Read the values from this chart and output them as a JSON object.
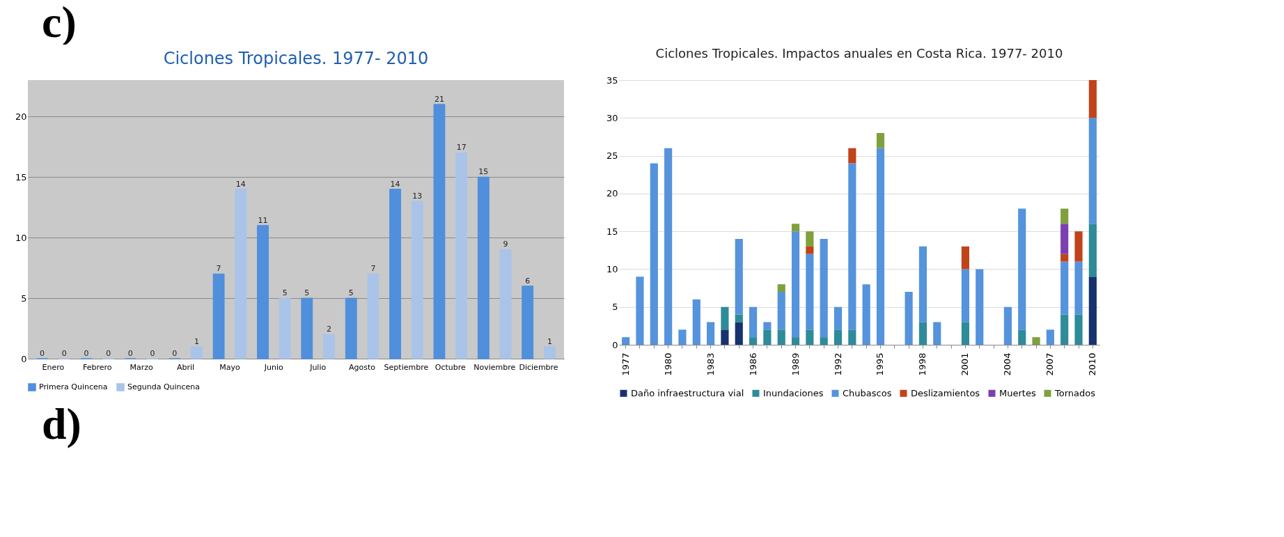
{
  "chart_data": [
    {
      "type": "bar",
      "title": "Ciclones Tropicales. 1977- 2010",
      "annotations": [
        "c)",
        "d)"
      ],
      "categories": [
        "Enero",
        "Febrero",
        "Marzo",
        "Abril",
        "Mayo",
        "Junio",
        "Julio",
        "Agosto",
        "Septiembre",
        "Octubre",
        "Noviembre",
        "Diciembre"
      ],
      "series": [
        {
          "name": "Primera Quincena",
          "color": "#4f8fdc",
          "values": [
            0,
            0,
            0,
            0,
            7,
            11,
            5,
            5,
            14,
            21,
            15,
            6
          ]
        },
        {
          "name": "Segunda Quincena",
          "color": "#a9c4e8",
          "values": [
            0,
            0,
            0,
            1,
            14,
            5,
            2,
            7,
            13,
            17,
            9,
            1
          ]
        }
      ],
      "ylim": [
        0,
        23
      ],
      "yticks": [
        0,
        5,
        10,
        15,
        20
      ],
      "grid": "y",
      "legend": "bottom",
      "data_labels": true
    },
    {
      "type": "bar",
      "title": "Ciclones Tropicales. Impactos anuales en Costa Rica. 1977- 2010",
      "stacked": true,
      "categories": [
        "1977",
        null,
        null,
        "1980",
        null,
        null,
        "1983",
        null,
        null,
        "1986",
        null,
        null,
        "1989",
        null,
        null,
        "1992",
        null,
        null,
        "1995",
        null,
        null,
        "1998",
        null,
        null,
        "2001",
        null,
        null,
        "2004",
        null,
        null,
        "2007",
        null,
        null,
        "2010"
      ],
      "series": [
        {
          "name": "Daño infraestructura vial",
          "color": "#17326e",
          "values": [
            null,
            null,
            null,
            null,
            null,
            null,
            null,
            2,
            3,
            null,
            null,
            null,
            null,
            null,
            null,
            null,
            null,
            null,
            null,
            null,
            null,
            null,
            null,
            null,
            null,
            null,
            null,
            null,
            null,
            null,
            null,
            null,
            null,
            9
          ]
        },
        {
          "name": "Inundaciones",
          "color": "#2e8b9a",
          "values": [
            null,
            null,
            null,
            null,
            null,
            null,
            null,
            3,
            1,
            1,
            2,
            2,
            1,
            2,
            1,
            2,
            2,
            null,
            null,
            null,
            null,
            3,
            null,
            null,
            3,
            null,
            null,
            null,
            2,
            null,
            null,
            4,
            4,
            7
          ]
        },
        {
          "name": "Chubascos",
          "color": "#5593dc",
          "values": [
            1,
            9,
            24,
            26,
            2,
            6,
            3,
            null,
            10,
            4,
            1,
            5,
            14,
            10,
            13,
            3,
            22,
            8,
            26,
            null,
            7,
            10,
            3,
            null,
            7,
            10,
            null,
            5,
            16,
            null,
            2,
            7,
            7,
            14
          ]
        },
        {
          "name": "Deslizamientos",
          "color": "#c0431a",
          "values": [
            null,
            null,
            null,
            null,
            null,
            null,
            null,
            null,
            null,
            null,
            null,
            null,
            null,
            1,
            null,
            null,
            2,
            null,
            null,
            null,
            null,
            null,
            null,
            null,
            3,
            null,
            null,
            null,
            null,
            null,
            null,
            1,
            4,
            5
          ]
        },
        {
          "name": "Muertes",
          "color": "#7b3fb0",
          "values": [
            null,
            null,
            null,
            null,
            null,
            null,
            null,
            null,
            null,
            null,
            null,
            null,
            null,
            null,
            null,
            null,
            null,
            null,
            null,
            null,
            null,
            null,
            null,
            null,
            null,
            null,
            null,
            null,
            null,
            null,
            null,
            4,
            null,
            null
          ]
        },
        {
          "name": "Tornados",
          "color": "#7fa03c",
          "values": [
            null,
            null,
            null,
            null,
            null,
            null,
            null,
            null,
            null,
            null,
            null,
            1,
            1,
            2,
            null,
            null,
            null,
            null,
            2,
            null,
            null,
            null,
            null,
            null,
            null,
            null,
            null,
            null,
            null,
            1,
            null,
            2,
            null,
            null
          ]
        }
      ],
      "ylim": [
        0,
        35
      ],
      "yticks": [
        0,
        5,
        10,
        15,
        20,
        25,
        30,
        35
      ],
      "grid": "y",
      "legend": "bottom"
    }
  ]
}
